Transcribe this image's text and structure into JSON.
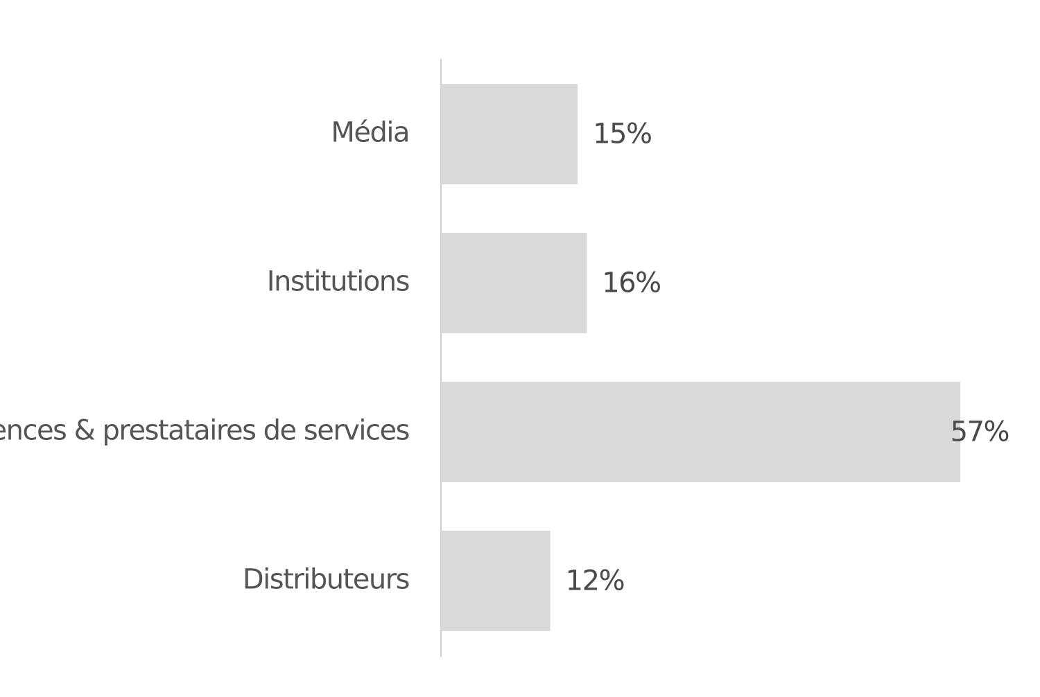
{
  "chart_data": {
    "type": "bar",
    "orientation": "horizontal",
    "categories": [
      "Média",
      "Institutions",
      "Agences & prestataires de services",
      "Distributeurs"
    ],
    "values": [
      15,
      16,
      57,
      12
    ],
    "value_labels": [
      "15%",
      "16%",
      "57%",
      "12%"
    ],
    "value_unit": "%",
    "xlim": [
      0,
      57
    ],
    "grid": false,
    "legend": "none",
    "title": "",
    "xlabel": "",
    "ylabel": "",
    "colors": {
      "bar": "#d9d9d9",
      "axis": "#cfcfcf",
      "category_text": "#555555",
      "value_text": "#4a4a4a",
      "background": "#ffffff"
    }
  }
}
